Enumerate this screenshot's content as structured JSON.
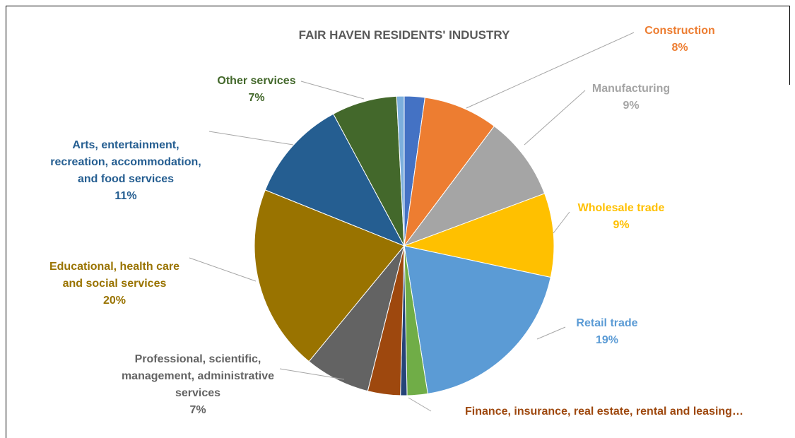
{
  "chart_data": {
    "type": "pie",
    "title": "FAIR HAVEN RESIDENTS' INDUSTRY",
    "categories": [
      null,
      "Construction",
      "Manufacturing",
      "Wholesale trade",
      "Retail trade",
      null,
      null,
      "Finance, insurance, real estate, rental and leasing…",
      "Professional, scientific, management, administrative services",
      "Educational, health care and social services",
      "Arts, entertainment, recreation, accommodation, and food services",
      "Other services",
      null
    ],
    "values": [
      2.2,
      8,
      9,
      9,
      19,
      2.2,
      0.7,
      3.5,
      7,
      20,
      11,
      7,
      0.8
    ],
    "value_labels": [
      null,
      "8%",
      "9%",
      "9%",
      "19%",
      null,
      null,
      null,
      "7%",
      "20%",
      "11%",
      "7%",
      null
    ],
    "colors": [
      "#4472c4",
      "#ed7d31",
      "#a5a5a5",
      "#ffc000",
      "#5b9bd5",
      "#70ad47",
      "#264478",
      "#9e480e",
      "#636363",
      "#997300",
      "#255e91",
      "#43682b",
      "#7cafdd"
    ]
  }
}
